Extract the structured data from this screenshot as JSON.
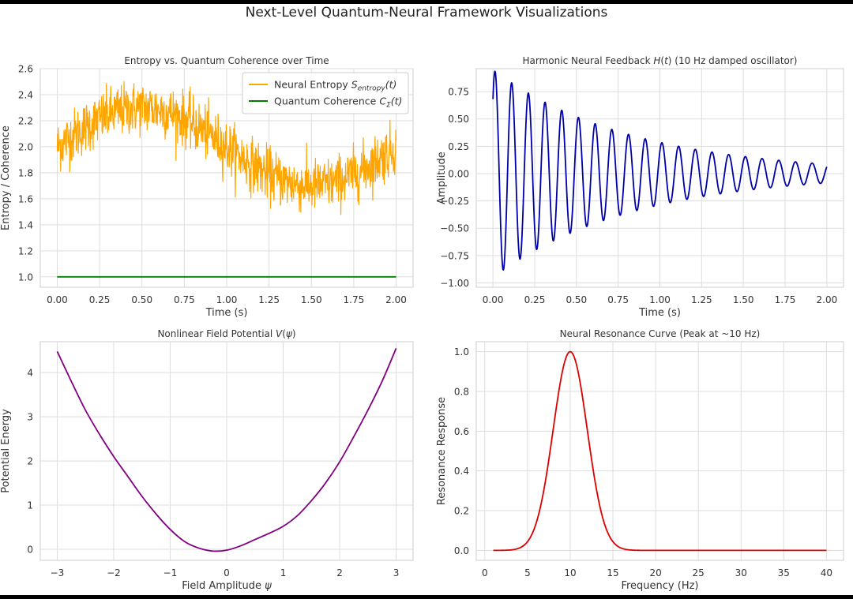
{
  "figure": {
    "suptitle": "Next-Level Quantum-Neural Framework Visualizations"
  },
  "chart_data": [
    {
      "id": "entropy",
      "type": "line",
      "title": "Entropy vs. Quantum Coherence over Time",
      "xlabel": "Time (s)",
      "ylabel": "Entropy / Coherence",
      "xlim": [
        -0.1,
        2.1
      ],
      "ylim": [
        0.92,
        2.6
      ],
      "xticks": [
        0.0,
        0.25,
        0.5,
        0.75,
        1.0,
        1.25,
        1.5,
        1.75,
        2.0
      ],
      "xticklabels": [
        "0.00",
        "0.25",
        "0.50",
        "0.75",
        "1.00",
        "1.25",
        "1.50",
        "1.75",
        "2.00"
      ],
      "yticks": [
        1.0,
        1.2,
        1.4,
        1.6,
        1.8,
        2.0,
        2.2,
        2.4,
        2.6
      ],
      "yticklabels": [
        "1.0",
        "1.2",
        "1.4",
        "1.6",
        "1.8",
        "2.0",
        "2.2",
        "2.4",
        "2.6"
      ],
      "grid": true,
      "legend": "top-right",
      "series": [
        {
          "name": "Neural Entropy S_entropy(t)",
          "legend_main": "Neural Entropy ",
          "legend_sym": "S",
          "legend_sub": "entropy",
          "legend_tail": "(t)",
          "color": "#FFA500",
          "x_range": [
            0,
            2
          ],
          "n_points": 1000,
          "mean": 2.0,
          "amplitude": 0.3,
          "frequency_hz": 0.5,
          "noise_std": 0.1
        },
        {
          "name": "Quantum Coherence C_Σ(t)",
          "legend_main": "Quantum Coherence ",
          "legend_sym": "C",
          "legend_sub": "Σ",
          "legend_tail": "(t)",
          "color": "#008000",
          "x": [
            0,
            2
          ],
          "values": [
            1.0,
            1.0
          ]
        }
      ]
    },
    {
      "id": "harmonic",
      "type": "line",
      "title": "Harmonic Neural Feedback H(t) (10 Hz damped oscillator)",
      "title_parts": [
        "Harmonic Neural Feedback ",
        "H",
        "(",
        "t",
        ") (10 Hz damped oscillator)"
      ],
      "xlabel": "Time (s)",
      "ylabel": "Amplitude",
      "xlim": [
        -0.1,
        2.1
      ],
      "ylim": [
        -1.04,
        0.96
      ],
      "xticks": [
        0.0,
        0.25,
        0.5,
        0.75,
        1.0,
        1.25,
        1.5,
        1.75,
        2.0
      ],
      "xticklabels": [
        "0.00",
        "0.25",
        "0.50",
        "0.75",
        "1.00",
        "1.25",
        "1.50",
        "1.75",
        "2.00"
      ],
      "yticks": [
        -1.0,
        -0.75,
        -0.5,
        -0.25,
        0.0,
        0.25,
        0.5,
        0.75
      ],
      "yticklabels": [
        "−1.00",
        "−0.75",
        "−0.50",
        "−0.25",
        "0.00",
        "0.25",
        "0.50",
        "0.75"
      ],
      "grid": true,
      "series": [
        {
          "name": "H(t)",
          "color": "#0000AA",
          "x_range": [
            0,
            2
          ],
          "n_points": 1000,
          "amplitude": 0.95,
          "frequency_hz": 10,
          "decay_rate": 1.2,
          "phase_rad": 0.8
        }
      ]
    },
    {
      "id": "potential",
      "type": "line",
      "title": "Nonlinear Field Potential V(ψ)",
      "title_parts": [
        "Nonlinear Field Potential ",
        "V",
        "(",
        "ψ",
        ")"
      ],
      "xlabel": "Field Amplitude ψ",
      "xlabel_parts": [
        "Field Amplitude ",
        "ψ"
      ],
      "ylabel": "Potential Energy",
      "xlim": [
        -3.3,
        3.3
      ],
      "ylim": [
        -0.25,
        4.7
      ],
      "xticks": [
        -3,
        -2,
        -1,
        0,
        1,
        2,
        3
      ],
      "xticklabels": [
        "−3",
        "−2",
        "−1",
        "0",
        "1",
        "2",
        "3"
      ],
      "yticks": [
        0,
        1,
        2,
        3,
        4
      ],
      "yticklabels": [
        "0",
        "1",
        "2",
        "3",
        "4"
      ],
      "grid": true,
      "series": [
        {
          "name": "V(ψ)",
          "color": "#800080",
          "x": [
            -3.0,
            -2.75,
            -2.5,
            -2.25,
            -2.0,
            -1.75,
            -1.5,
            -1.25,
            -1.0,
            -0.75,
            -0.5,
            -0.25,
            0.0,
            0.25,
            0.5,
            0.75,
            1.0,
            1.25,
            1.5,
            1.75,
            2.0,
            2.25,
            2.5,
            2.75,
            3.0
          ],
          "values": [
            4.48,
            3.8,
            3.15,
            2.6,
            2.1,
            1.65,
            1.2,
            0.8,
            0.45,
            0.18,
            0.03,
            -0.04,
            -0.02,
            0.08,
            0.22,
            0.36,
            0.52,
            0.76,
            1.1,
            1.5,
            1.98,
            2.55,
            3.15,
            3.8,
            4.55
          ]
        }
      ]
    },
    {
      "id": "resonance",
      "type": "line",
      "title": "Neural Resonance Curve (Peak at ~10 Hz)",
      "xlabel": "Frequency (Hz)",
      "ylabel": "Resonance Response",
      "xlim": [
        -1,
        42
      ],
      "ylim": [
        -0.05,
        1.05
      ],
      "xticks": [
        0,
        5,
        10,
        15,
        20,
        25,
        30,
        35,
        40
      ],
      "xticklabels": [
        "0",
        "5",
        "10",
        "15",
        "20",
        "25",
        "30",
        "35",
        "40"
      ],
      "yticks": [
        0.0,
        0.2,
        0.4,
        0.6,
        0.8,
        1.0
      ],
      "yticklabels": [
        "0.0",
        "0.2",
        "0.4",
        "0.6",
        "0.8",
        "1.0"
      ],
      "grid": true,
      "series": [
        {
          "name": "Resonance",
          "color": "#DD0000",
          "x_range": [
            1,
            40
          ],
          "n_points": 500,
          "peak_hz": 10,
          "sigma_hz": 2.0,
          "peak_value": 1.0
        }
      ]
    }
  ]
}
